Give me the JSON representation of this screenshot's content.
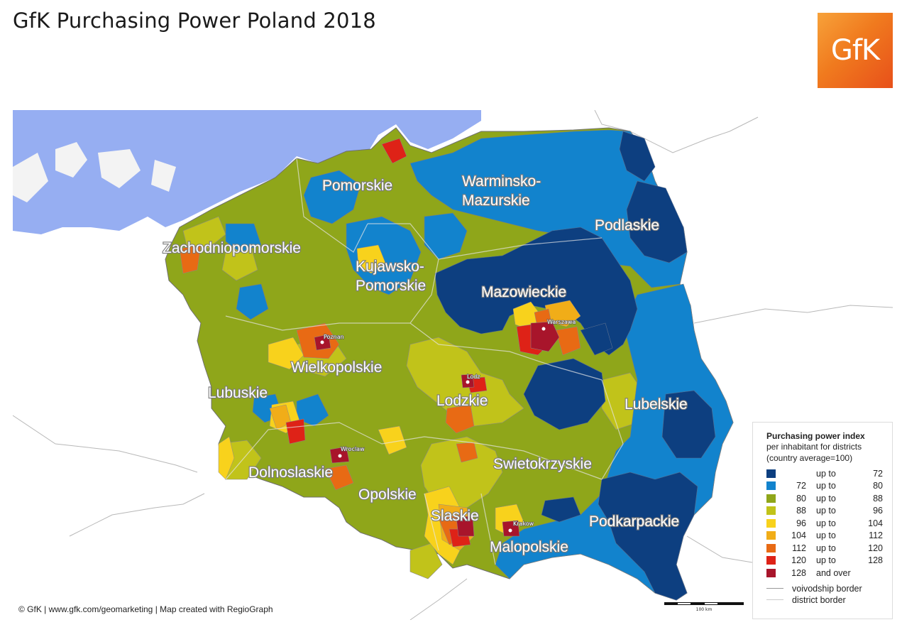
{
  "title": "GfK Purchasing Power Poland 2018",
  "logo_text": "GfK",
  "credit": "© GfK | www.gfk.com/geomarketing | Map created with RegioGraph",
  "scale_label": "100 km",
  "colors": {
    "sea": "#96aef2",
    "land_outside": "#f3f3f3",
    "border": "#9a9a9a",
    "c1": "#0d3f80",
    "c2": "#1283cd",
    "c3": "#8fa61a",
    "c4": "#c1c31a",
    "c5": "#f8d21c",
    "c6": "#f1ad18",
    "c7": "#e86a14",
    "c8": "#de2217",
    "c9": "#a8152b"
  },
  "regions": [
    {
      "name": "Pomorskie"
    },
    {
      "name": "Warminsko-"
    },
    {
      "name": "Mazurskie"
    },
    {
      "name": "Podlaskie"
    },
    {
      "name": "Zachodniopomorskie"
    },
    {
      "name": "Kujawsko-"
    },
    {
      "name": "Pomorskie"
    },
    {
      "name": "Mazowieckie"
    },
    {
      "name": "Wielkopolskie"
    },
    {
      "name": "Lubuskie"
    },
    {
      "name": "Lodzkie"
    },
    {
      "name": "Lubelskie"
    },
    {
      "name": "Dolnoslaskie"
    },
    {
      "name": "Swietokrzyskie"
    },
    {
      "name": "Opolskie"
    },
    {
      "name": "Slaskie"
    },
    {
      "name": "Malopolskie"
    },
    {
      "name": "Podkarpackie"
    }
  ],
  "cities": [
    {
      "name": "Poznan"
    },
    {
      "name": "Warszawa"
    },
    {
      "name": "Lodz"
    },
    {
      "name": "Wroclaw"
    },
    {
      "name": "Krakow"
    }
  ],
  "legend": {
    "title": "Purchasing power index",
    "subtitle1": "per inhabitant for districts",
    "subtitle2": "(country average=100)",
    "classes": [
      {
        "low": "",
        "mid": "up to",
        "high": "72",
        "color": "#0d3f80"
      },
      {
        "low": "72",
        "mid": "up to",
        "high": "80",
        "color": "#1283cd"
      },
      {
        "low": "80",
        "mid": "up to",
        "high": "88",
        "color": "#8fa61a"
      },
      {
        "low": "88",
        "mid": "up to",
        "high": "96",
        "color": "#c1c31a"
      },
      {
        "low": "96",
        "mid": "up to",
        "high": "104",
        "color": "#f8d21c"
      },
      {
        "low": "104",
        "mid": "up to",
        "high": "112",
        "color": "#f1ad18"
      },
      {
        "low": "112",
        "mid": "up to",
        "high": "120",
        "color": "#e86a14"
      },
      {
        "low": "120",
        "mid": "up to",
        "high": "128",
        "color": "#de2217"
      },
      {
        "low": "128",
        "mid": "and over",
        "high": "",
        "color": "#a8152b"
      }
    ],
    "border_voivodship": "voivodship border",
    "border_district": "district border"
  }
}
